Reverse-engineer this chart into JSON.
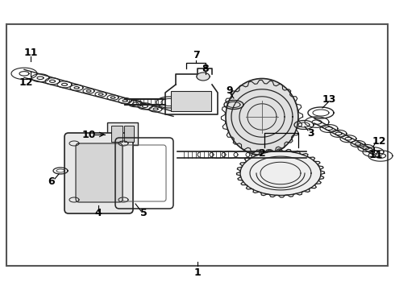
{
  "bg_color": "#ffffff",
  "border_color": "#444444",
  "text_color": "#000000",
  "fig_width": 4.9,
  "fig_height": 3.6,
  "dpi": 100,
  "part_color": "#222222",
  "fill_light": "#e0e0e0",
  "fill_mid": "#cccccc"
}
